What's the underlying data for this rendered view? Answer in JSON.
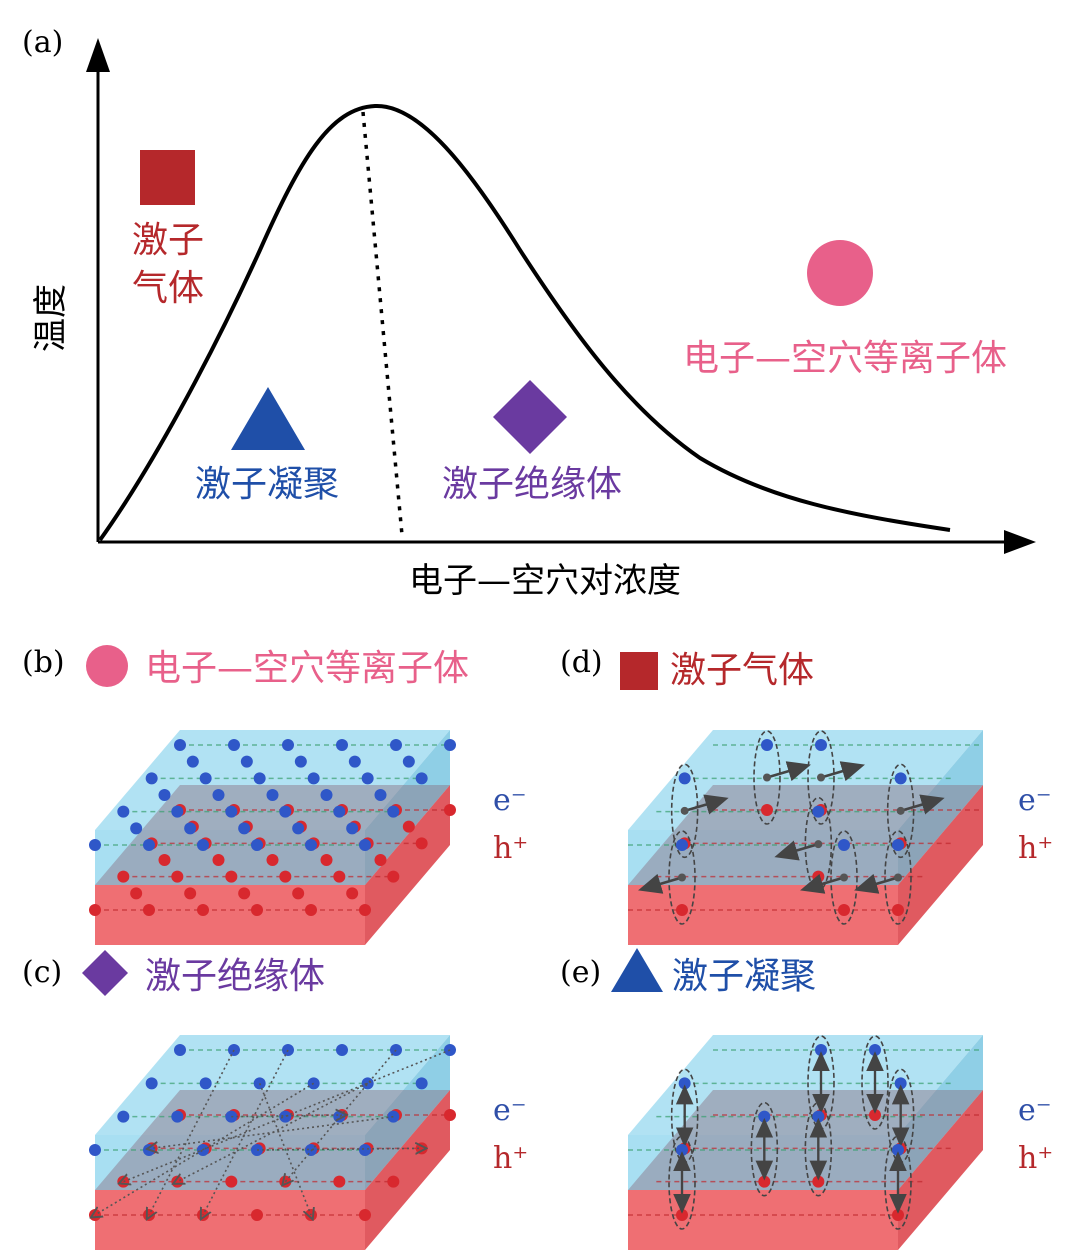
{
  "colors": {
    "exciton_gas": "#b5282b",
    "exciton_condensate": "#1f4fa8",
    "exciton_insulator": "#6a3aa0",
    "eh_plasma": "#e8608a",
    "electron_layer": "#a8dff2",
    "hole_layer": "#ef6f73",
    "electron_dot": "#2f57c8",
    "hole_dot": "#d8282e",
    "axis": "#000000"
  },
  "panel_a": {
    "tag": "(a)",
    "y_axis_label": "温度",
    "x_axis_label": "电子—空穴对浓度",
    "regions": {
      "exciton_gas_line1": "激子",
      "exciton_gas_line2": "气体",
      "exciton_condensate": "激子凝聚",
      "exciton_insulator": "激子绝缘体",
      "eh_plasma": "电子—空穴等离子体"
    },
    "icons": [
      "square-icon",
      "triangle-icon",
      "diamond-icon",
      "circle-icon"
    ]
  },
  "panel_b": {
    "tag": "(b)",
    "title": "电子—空穴等离子体",
    "e_label": "e⁻",
    "h_label": "h⁺"
  },
  "panel_c": {
    "tag": "(c)",
    "title": "激子绝缘体",
    "e_label": "e⁻",
    "h_label": "h⁺"
  },
  "panel_d": {
    "tag": "(d)",
    "title": "激子气体",
    "e_label": "e⁻",
    "h_label": "h⁺"
  },
  "panel_e": {
    "tag": "(e)",
    "title": "激子凝聚",
    "e_label": "e⁻",
    "h_label": "h⁺"
  }
}
